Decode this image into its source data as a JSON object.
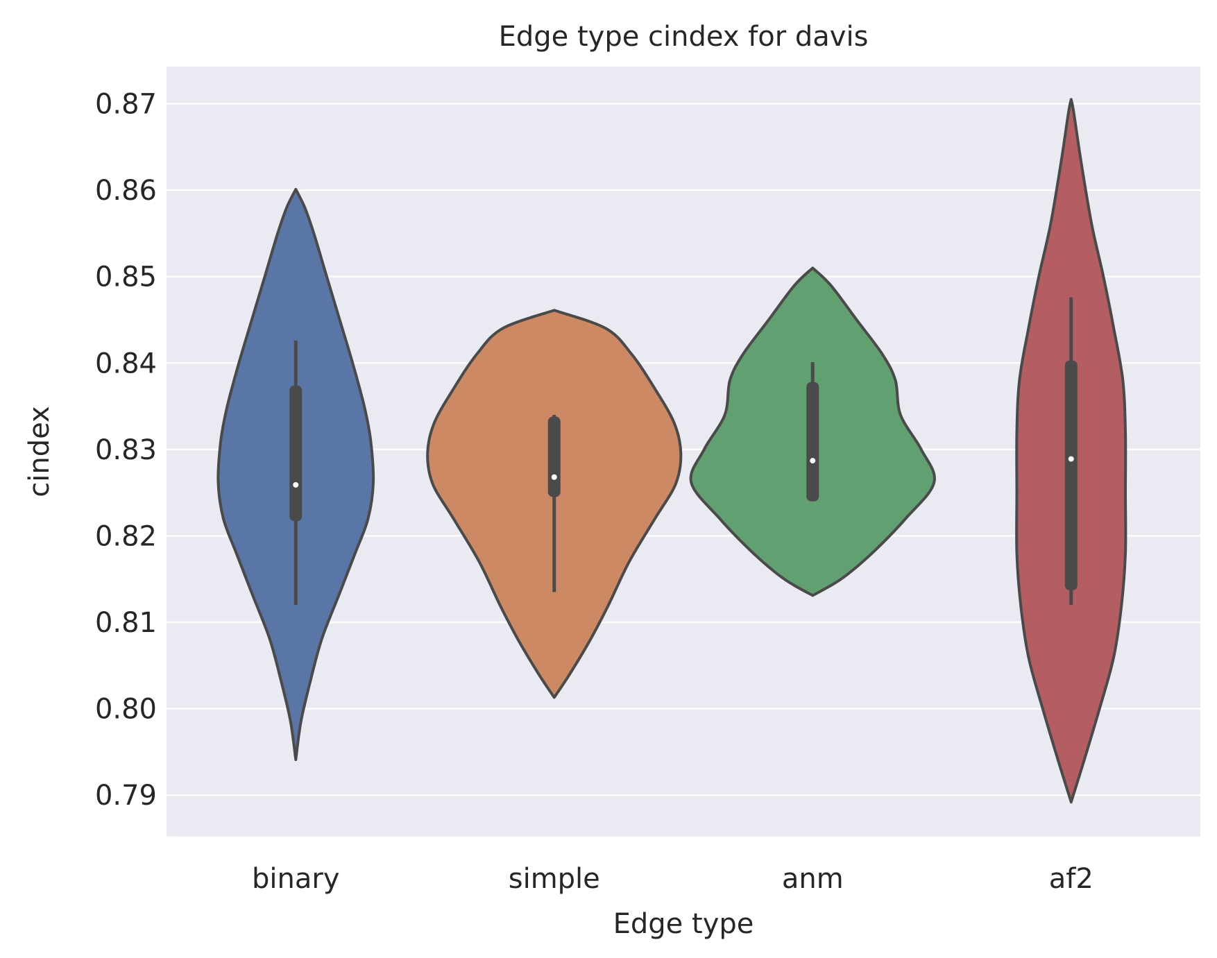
{
  "chart_data": {
    "type": "violin",
    "title": "Edge type cindex for davis",
    "xlabel": "Edge type",
    "ylabel": "cindex",
    "ylim": [
      0.7852,
      0.8743
    ],
    "yticks": [
      "0.79",
      "0.80",
      "0.81",
      "0.82",
      "0.83",
      "0.84",
      "0.85",
      "0.86",
      "0.87"
    ],
    "grid": true,
    "categories": [
      "binary",
      "simple",
      "anm",
      "af2"
    ],
    "colors": [
      "#5a76a6",
      "#cc8964",
      "#60a071",
      "#b45e63"
    ],
    "violins": [
      {
        "name": "binary",
        "min": 0.7941,
        "max": 0.8601,
        "q1": 0.8217,
        "median": 0.8259,
        "q3": 0.8374,
        "whisker_low": 0.812,
        "whisker_high": 0.8426,
        "profile": [
          [
            0.7941,
            0.0
          ],
          [
            0.7985,
            0.04
          ],
          [
            0.803,
            0.11
          ],
          [
            0.808,
            0.2
          ],
          [
            0.813,
            0.33
          ],
          [
            0.818,
            0.46
          ],
          [
            0.822,
            0.56
          ],
          [
            0.8262,
            0.6
          ],
          [
            0.831,
            0.58
          ],
          [
            0.835,
            0.53
          ],
          [
            0.84,
            0.44
          ],
          [
            0.845,
            0.34
          ],
          [
            0.85,
            0.24
          ],
          [
            0.855,
            0.14
          ],
          [
            0.858,
            0.07
          ],
          [
            0.8601,
            0.0
          ]
        ]
      },
      {
        "name": "simple",
        "min": 0.8013,
        "max": 0.8461,
        "q1": 0.8245,
        "median": 0.8268,
        "q3": 0.8338,
        "whisker_low": 0.8135,
        "whisker_high": 0.834,
        "profile": [
          [
            0.8013,
            0.0
          ],
          [
            0.804,
            0.12
          ],
          [
            0.808,
            0.28
          ],
          [
            0.812,
            0.42
          ],
          [
            0.817,
            0.58
          ],
          [
            0.822,
            0.78
          ],
          [
            0.826,
            0.94
          ],
          [
            0.8295,
            0.98
          ],
          [
            0.833,
            0.93
          ],
          [
            0.837,
            0.78
          ],
          [
            0.841,
            0.6
          ],
          [
            0.844,
            0.4
          ],
          [
            0.8461,
            0.0
          ]
        ]
      },
      {
        "name": "anm",
        "min": 0.8131,
        "max": 0.851,
        "q1": 0.824,
        "median": 0.8287,
        "q3": 0.8378,
        "whisker_low": 0.824,
        "whisker_high": 0.8401,
        "profile": [
          [
            0.8131,
            0.0
          ],
          [
            0.815,
            0.22
          ],
          [
            0.818,
            0.46
          ],
          [
            0.822,
            0.72
          ],
          [
            0.8262,
            0.94
          ],
          [
            0.83,
            0.84
          ],
          [
            0.834,
            0.68
          ],
          [
            0.838,
            0.64
          ],
          [
            0.841,
            0.54
          ],
          [
            0.845,
            0.34
          ],
          [
            0.849,
            0.14
          ],
          [
            0.851,
            0.0
          ]
        ]
      },
      {
        "name": "af2",
        "min": 0.7892,
        "max": 0.8705,
        "q1": 0.8137,
        "median": 0.8289,
        "q3": 0.8403,
        "whisker_low": 0.812,
        "whisker_high": 0.8476,
        "profile": [
          [
            0.7892,
            0.0
          ],
          [
            0.794,
            0.1
          ],
          [
            0.8,
            0.22
          ],
          [
            0.806,
            0.33
          ],
          [
            0.812,
            0.39
          ],
          [
            0.818,
            0.42
          ],
          [
            0.825,
            0.42
          ],
          [
            0.832,
            0.42
          ],
          [
            0.838,
            0.4
          ],
          [
            0.844,
            0.33
          ],
          [
            0.85,
            0.25
          ],
          [
            0.856,
            0.16
          ],
          [
            0.863,
            0.08
          ],
          [
            0.869,
            0.02
          ],
          [
            0.8705,
            0.0
          ]
        ]
      }
    ]
  }
}
